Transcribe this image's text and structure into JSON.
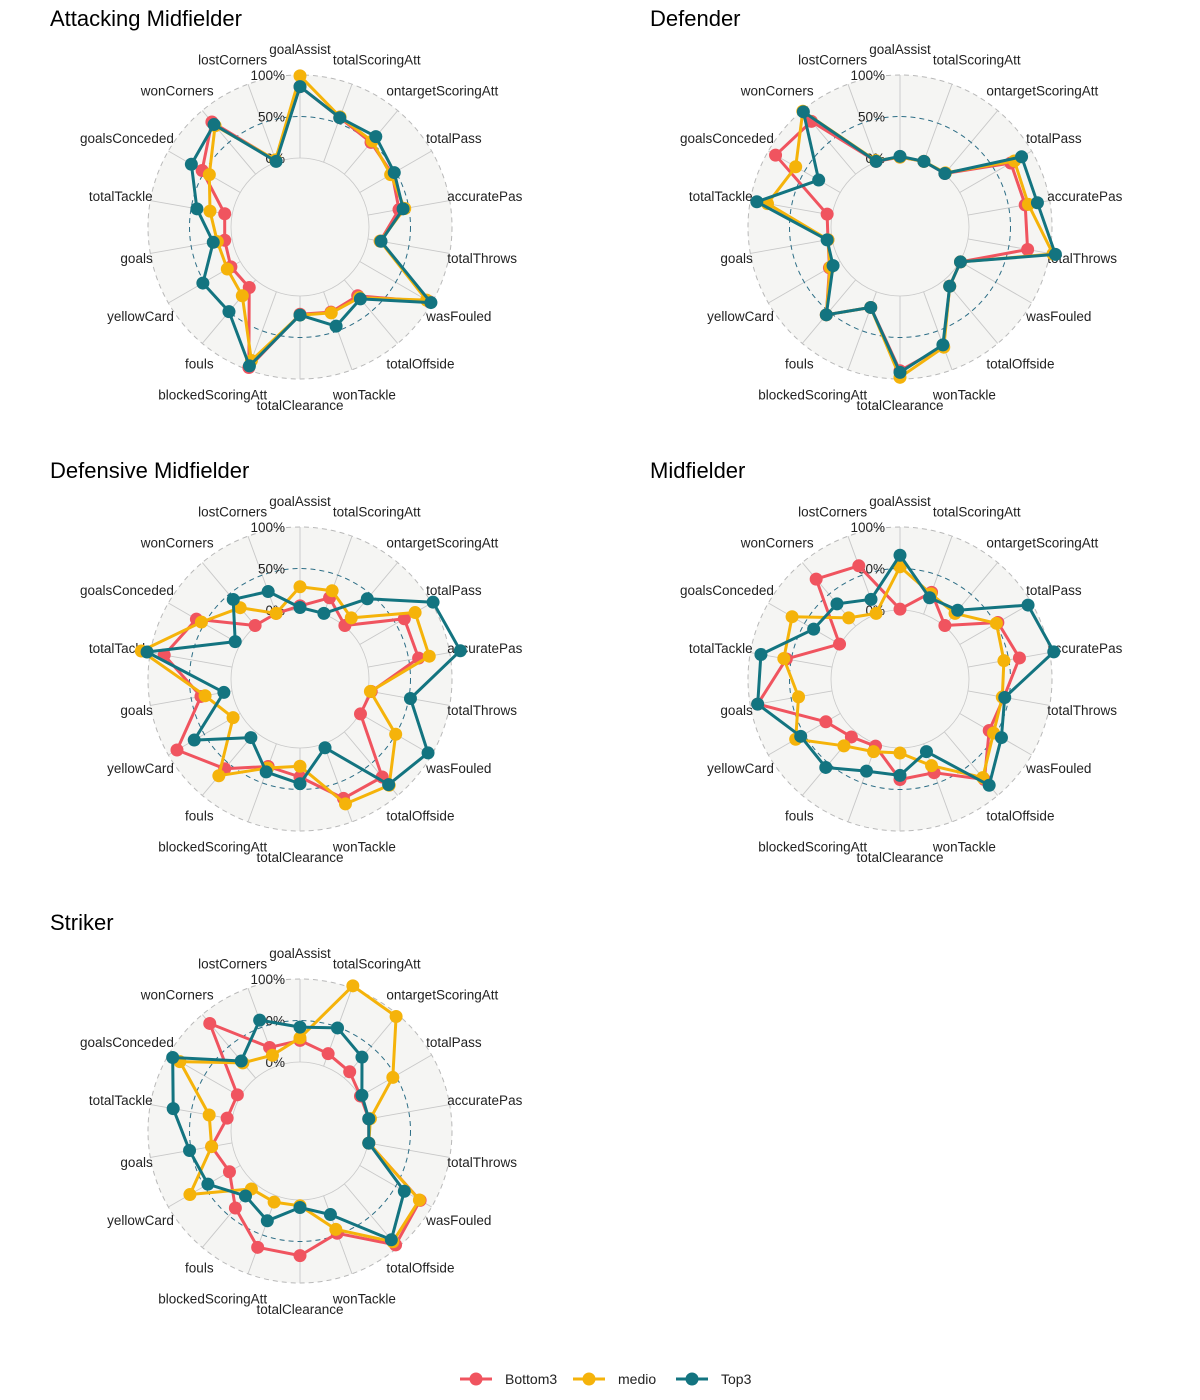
{
  "chart_data": {
    "type": "radar",
    "axes": [
      "goalAssist",
      "totalScoringAtt",
      "ontargetScoringAtt",
      "totalPass",
      "accuratePas",
      "totalThrows",
      "wasFouled",
      "totalOffside",
      "wonTackle",
      "totalClearance",
      "blockedScoringAtt",
      "fouls",
      "yellowCard",
      "goals",
      "totalTackle",
      "goalsConceded",
      "wonCorners",
      "lostCorners"
    ],
    "grid_labels": [
      "0%",
      "50%",
      "100%"
    ],
    "series_colors": {
      "Bottom3": "#f0545f",
      "medio": "#f5b30a",
      "Top3": "#137480"
    },
    "legend": [
      "Bottom3",
      "medio",
      "Top3"
    ],
    "legend_position": "bottom",
    "panels": [
      {
        "title": "Attacking Midfielder",
        "series": [
          {
            "name": "Bottom3",
            "values": [
              0.86,
              0.57,
              0.5,
              0.45,
              0.38,
              0.15,
              0.97,
              0.25,
              0.26,
              0.22,
              0.97,
              0.12,
              0.13,
              0.09,
              0.09,
              0.53,
              0.82,
              0.02
            ]
          },
          {
            "name": "medio",
            "values": [
              0.99,
              0.58,
              0.52,
              0.43,
              0.45,
              0.15,
              0.93,
              0.28,
              0.27,
              0.23,
              0.88,
              0.25,
              0.18,
              0.18,
              0.27,
              0.43,
              0.76,
              0.03
            ]
          },
          {
            "name": "Top3",
            "values": [
              0.86,
              0.57,
              0.59,
              0.48,
              0.43,
              0.16,
              0.99,
              0.3,
              0.44,
              0.23,
              0.95,
              0.5,
              0.52,
              0.23,
              0.43,
              0.68,
              0.78,
              0.01
            ]
          }
        ]
      },
      {
        "title": "Defender",
        "series": [
          {
            "name": "Bottom3",
            "values": [
              0.01,
              0.01,
              0.01,
              0.71,
              0.7,
              0.73,
              0.01,
              0.1,
              0.7,
              0.9,
              0.2,
              0.55,
              0.15,
              0.05,
              0.06,
              0.9,
              0.83,
              0.01
            ]
          },
          {
            "name": "medio",
            "values": [
              0.01,
              0.01,
              0.02,
              0.76,
              0.74,
              1.04,
              0.01,
              0.1,
              0.71,
              0.98,
              0.2,
              0.55,
              0.14,
              0.05,
              0.79,
              0.62,
              0.99,
              0.02
            ]
          },
          {
            "name": "Top3",
            "values": [
              0.02,
              0.01,
              0.01,
              0.86,
              0.85,
              1.07,
              0.01,
              0.1,
              0.68,
              0.92,
              0.2,
              0.55,
              0.1,
              0.06,
              0.92,
              0.3,
              0.98,
              0.01
            ]
          }
        ]
      },
      {
        "title": "Defensive Midfielder",
        "series": [
          {
            "name": "Bottom3",
            "values": [
              0.05,
              0.21,
              0.01,
              0.62,
              0.62,
              0.04,
              0.01,
              0.71,
              0.7,
              0.35,
              0.29,
              0.58,
              0.88,
              0.38,
              0.83,
              0.61,
              0.01,
              0.01
            ]
          },
          {
            "name": "medio",
            "values": [
              0.28,
              0.3,
              0.13,
              0.77,
              0.75,
              0.03,
              0.5,
              0.84,
              0.77,
              0.22,
              0.31,
              0.69,
              0.1,
              0.33,
              1.11,
              0.54,
              0.29,
              0.01
            ]
          },
          {
            "name": "Top3",
            "values": [
              0.03,
              0.01,
              0.43,
              1.02,
              1.13,
              0.52,
              0.95,
              0.83,
              0.05,
              0.43,
              0.36,
              0.09,
              0.64,
              0.1,
              1.04,
              0.07,
              0.42,
              0.29
            ]
          }
        ]
      },
      {
        "title": "Midfielder",
        "series": [
          {
            "name": "Bottom3",
            "values": [
              0.01,
              0.28,
              0.01,
              0.53,
              0.63,
              0.44,
              0.41,
              0.75,
              0.37,
              0.38,
              0.03,
              0.08,
              0.2,
              0.91,
              0.56,
              0.01,
              0.74,
              0.62
            ]
          },
          {
            "name": "medio",
            "values": [
              0.52,
              0.26,
              0.2,
              0.51,
              0.44,
              0.42,
              0.47,
              0.72,
              0.28,
              0.06,
              0.1,
              0.22,
              0.62,
              0.41,
              0.59,
              0.67,
              0.13,
              0.01
            ]
          },
          {
            "name": "Top3",
            "values": [
              0.66,
              0.21,
              0.25,
              0.95,
              1.05,
              0.45,
              0.58,
              0.84,
              0.1,
              0.33,
              0.35,
              0.56,
              0.55,
              0.91,
              0.87,
              0.37,
              0.35,
              0.19
            ]
          }
        ]
      },
      {
        "title": "Striker",
        "series": [
          {
            "name": "Bottom3",
            "values": [
              0.26,
              0.16,
              0.1,
              0.01,
              0.01,
              0.01,
              0.84,
              0.96,
              0.48,
              0.67,
              0.66,
              0.38,
              0.15,
              0.25,
              0.06,
              0.04,
              0.86,
              0.24
            ]
          },
          {
            "name": "medio",
            "values": [
              0.29,
              1.03,
              0.97,
              0.46,
              0.03,
              0.01,
              0.83,
              0.91,
              0.43,
              0.07,
              0.08,
              0.08,
              0.7,
              0.25,
              0.28,
              0.84,
              0.24,
              0.14
            ]
          },
          {
            "name": "Top3",
            "values": [
              0.42,
              0.49,
              0.33,
              0.03,
              0.01,
              0.01,
              0.62,
              0.88,
              0.24,
              0.09,
              0.32,
              0.19,
              0.45,
              0.52,
              0.72,
              0.94,
              0.27,
              0.59
            ]
          }
        ]
      }
    ]
  }
}
